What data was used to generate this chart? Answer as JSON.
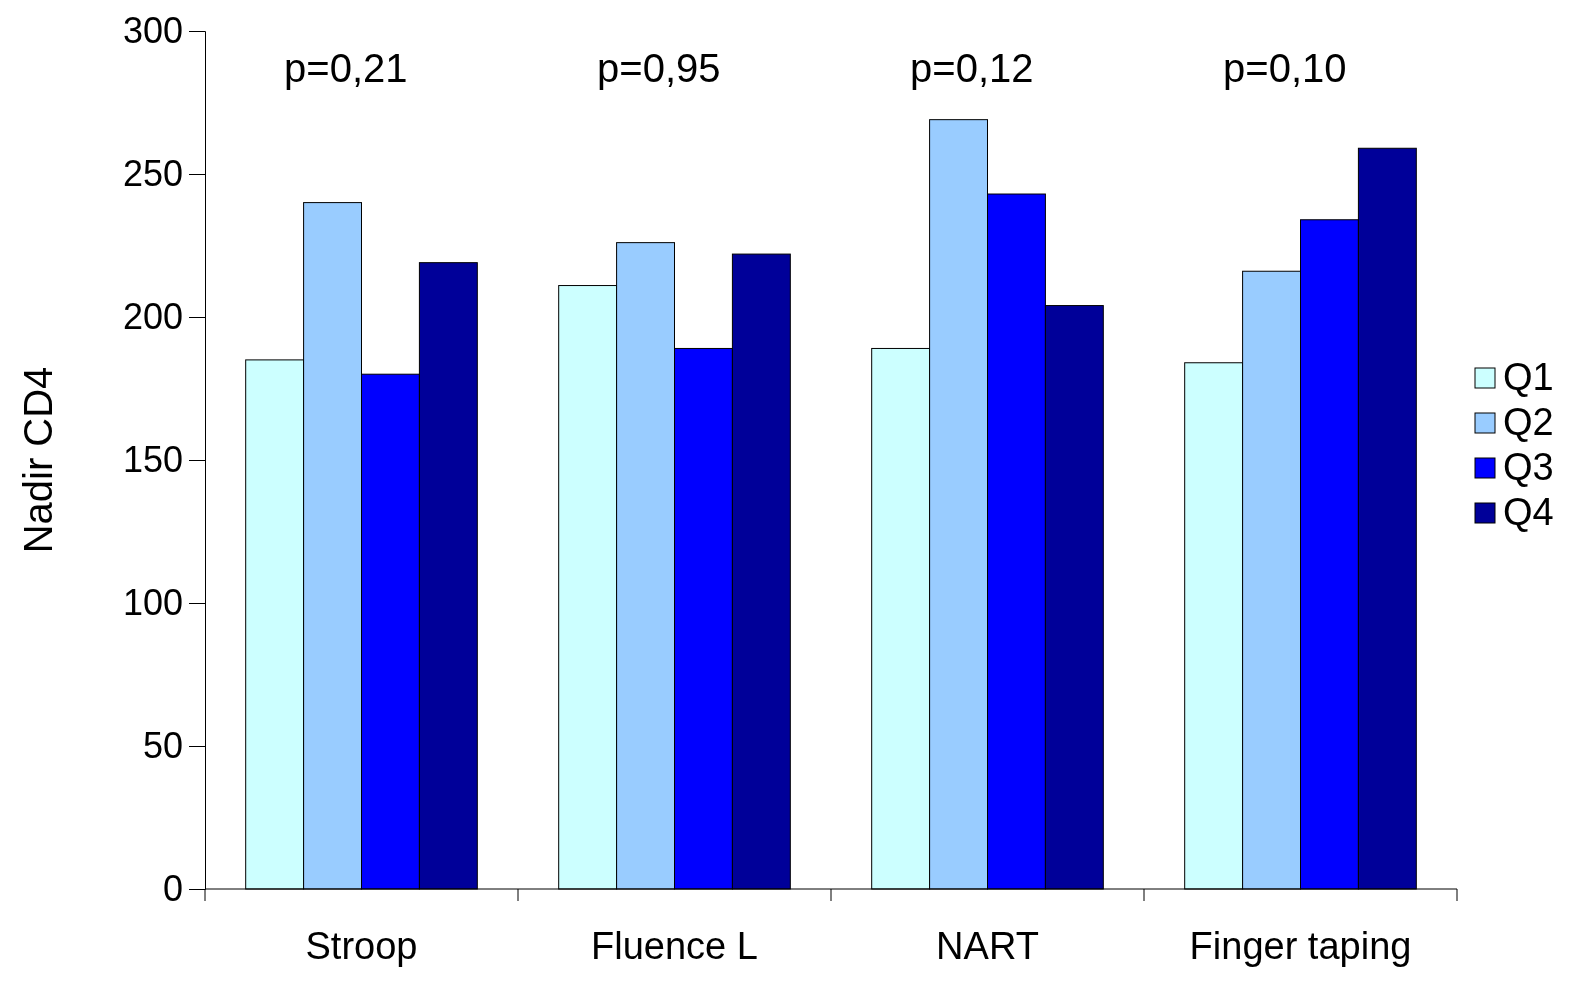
{
  "chart_data": {
    "type": "bar",
    "ylabel": "Nadir CD4",
    "categories": [
      "Stroop",
      "Fluence L",
      "NART",
      "Finger taping"
    ],
    "series": [
      {
        "name": "Q1",
        "color": "#ccffff",
        "values": [
          185,
          211,
          189,
          184
        ]
      },
      {
        "name": "Q2",
        "color": "#99ccff",
        "values": [
          240,
          226,
          269,
          216
        ]
      },
      {
        "name": "Q3",
        "color": "#0000ff",
        "values": [
          180,
          189,
          243,
          234
        ]
      },
      {
        "name": "Q4",
        "color": "#000099",
        "values": [
          219,
          222,
          204,
          259
        ]
      }
    ],
    "ylim": [
      0,
      300
    ],
    "yticks": [
      0,
      50,
      100,
      150,
      200,
      250,
      300
    ],
    "grid": false,
    "legend": "right",
    "annotations": [
      "p=0,21",
      "p=0,95",
      "p=0,12",
      "p=0,10"
    ]
  }
}
